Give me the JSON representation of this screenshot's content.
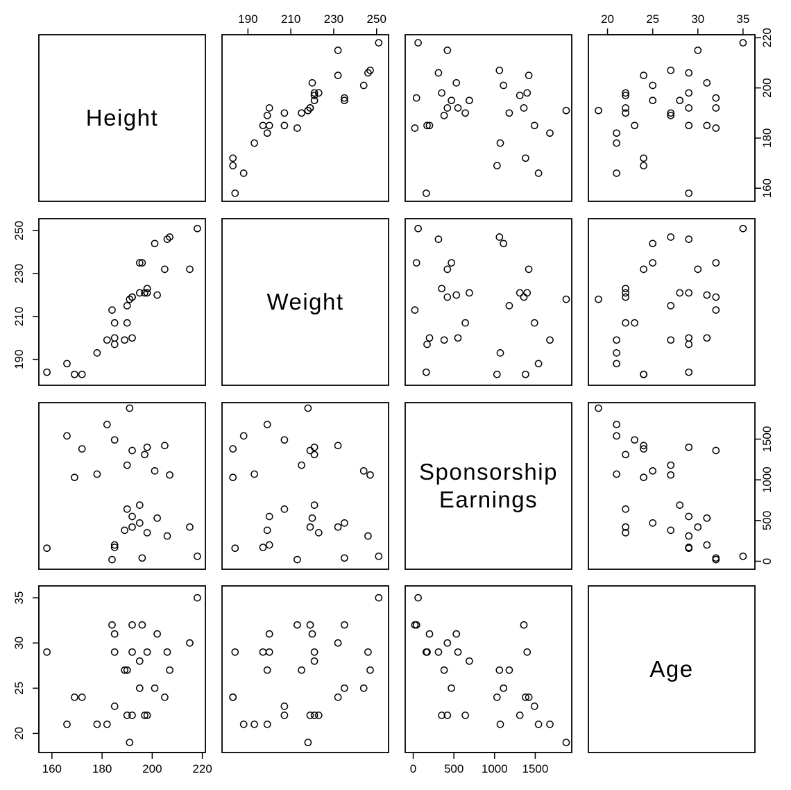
{
  "chart_data": {
    "type": "scatter-matrix",
    "variables": [
      {
        "key": "height",
        "label": [
          "Height"
        ],
        "range": [
          157,
          219
        ],
        "ticks": [
          160,
          180,
          200,
          220
        ]
      },
      {
        "key": "weight",
        "label": [
          "Weight"
        ],
        "range": [
          180.5,
          253
        ],
        "ticks": [
          190,
          210,
          230,
          250
        ]
      },
      {
        "key": "sponsorship",
        "label": [
          "Sponsorship",
          "Earnings"
        ],
        "range": [
          -30,
          1880
        ],
        "ticks": [
          0,
          500,
          1000,
          1500
        ]
      },
      {
        "key": "age",
        "label": [
          "Age"
        ],
        "range": [
          18.5,
          35.7
        ],
        "ticks": [
          20,
          25,
          30,
          35
        ]
      }
    ],
    "axis_placement": {
      "bottom": [
        0,
        2
      ],
      "left": [
        1,
        3
      ],
      "top": [
        1,
        3
      ],
      "right": [
        0,
        2
      ]
    },
    "observations": [
      {
        "height": 158,
        "weight": 184,
        "sponsorship": 160,
        "age": 29
      },
      {
        "height": 166,
        "weight": 188,
        "sponsorship": 1540,
        "age": 21
      },
      {
        "height": 169,
        "weight": 183,
        "sponsorship": 1030,
        "age": 24
      },
      {
        "height": 172,
        "weight": 183,
        "sponsorship": 1380,
        "age": 24
      },
      {
        "height": 178,
        "weight": 193,
        "sponsorship": 1070,
        "age": 21
      },
      {
        "height": 182,
        "weight": 199,
        "sponsorship": 1680,
        "age": 21
      },
      {
        "height": 184,
        "weight": 213,
        "sponsorship": 20,
        "age": 32
      },
      {
        "height": 185,
        "weight": 200,
        "sponsorship": 200,
        "age": 31
      },
      {
        "height": 185,
        "weight": 207,
        "sponsorship": 1490,
        "age": 23
      },
      {
        "height": 185,
        "weight": 197,
        "sponsorship": 170,
        "age": 29
      },
      {
        "height": 189,
        "weight": 199,
        "sponsorship": 380,
        "age": 27
      },
      {
        "height": 190,
        "weight": 215,
        "sponsorship": 1180,
        "age": 27
      },
      {
        "height": 190,
        "weight": 207,
        "sponsorship": 640,
        "age": 22
      },
      {
        "height": 191,
        "weight": 218,
        "sponsorship": 1880,
        "age": 19
      },
      {
        "height": 192,
        "weight": 219,
        "sponsorship": 420,
        "age": 22
      },
      {
        "height": 192,
        "weight": 200,
        "sponsorship": 550,
        "age": 29
      },
      {
        "height": 192,
        "weight": 219,
        "sponsorship": 1360,
        "age": 32
      },
      {
        "height": 195,
        "weight": 221,
        "sponsorship": 690,
        "age": 28
      },
      {
        "height": 195,
        "weight": 235,
        "sponsorship": 470,
        "age": 25
      },
      {
        "height": 196,
        "weight": 235,
        "sponsorship": 40,
        "age": 32
      },
      {
        "height": 197,
        "weight": 221,
        "sponsorship": 1310,
        "age": 22
      },
      {
        "height": 198,
        "weight": 223,
        "sponsorship": 350,
        "age": 22
      },
      {
        "height": 198,
        "weight": 221,
        "sponsorship": 1400,
        "age": 29
      },
      {
        "height": 201,
        "weight": 244,
        "sponsorship": 1110,
        "age": 25
      },
      {
        "height": 202,
        "weight": 220,
        "sponsorship": 530,
        "age": 31
      },
      {
        "height": 205,
        "weight": 232,
        "sponsorship": 1420,
        "age": 24
      },
      {
        "height": 206,
        "weight": 246,
        "sponsorship": 310,
        "age": 29
      },
      {
        "height": 207,
        "weight": 247,
        "sponsorship": 1060,
        "age": 27
      },
      {
        "height": 215,
        "weight": 232,
        "sponsorship": 420,
        "age": 30
      },
      {
        "height": 218,
        "weight": 251,
        "sponsorship": 60,
        "age": 35
      }
    ]
  }
}
